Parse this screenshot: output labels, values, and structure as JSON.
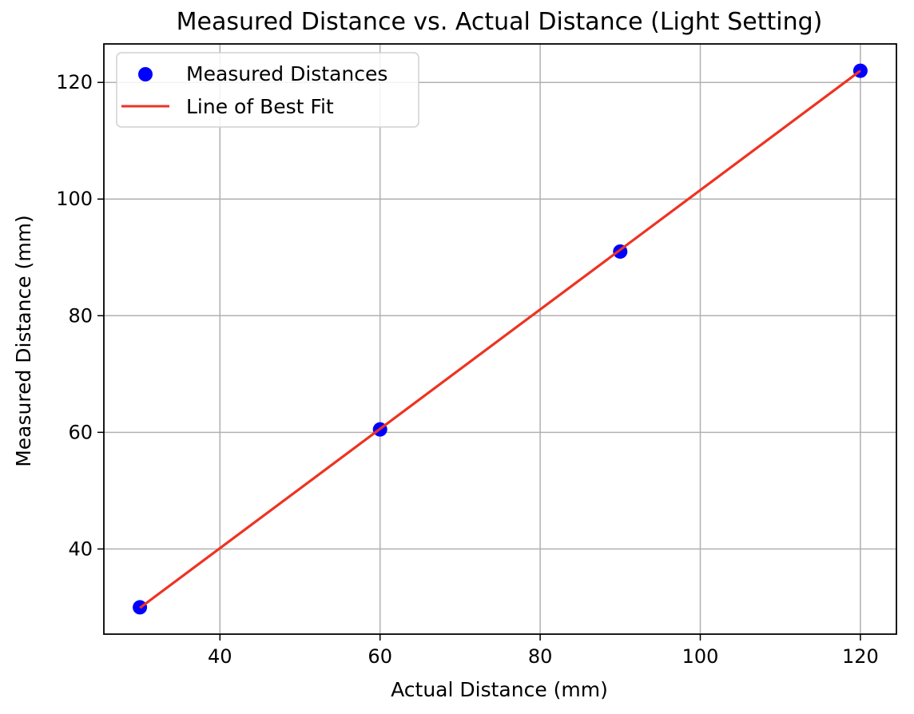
{
  "chart_data": {
    "type": "scatter",
    "title": "Measured Distance vs. Actual Distance (Light Setting)",
    "xlabel": "Actual Distance (mm)",
    "ylabel": "Measured Distance (mm)",
    "xlim": [
      25.5,
      124.5
    ],
    "ylim": [
      25.4,
      126.6
    ],
    "xticks": [
      40,
      60,
      80,
      100,
      120
    ],
    "yticks": [
      40,
      60,
      80,
      100,
      120
    ],
    "grid": true,
    "legend_position": "top-left",
    "series": [
      {
        "name": "Measured Distances",
        "kind": "scatter",
        "color": "#0000ff",
        "x": [
          30,
          60,
          90,
          120
        ],
        "y": [
          30,
          60.5,
          91,
          122
        ]
      },
      {
        "name": "Line of Best Fit",
        "kind": "line",
        "color": "#ee3322",
        "x": [
          30,
          120
        ],
        "y": [
          29.9,
          122
        ]
      }
    ]
  }
}
